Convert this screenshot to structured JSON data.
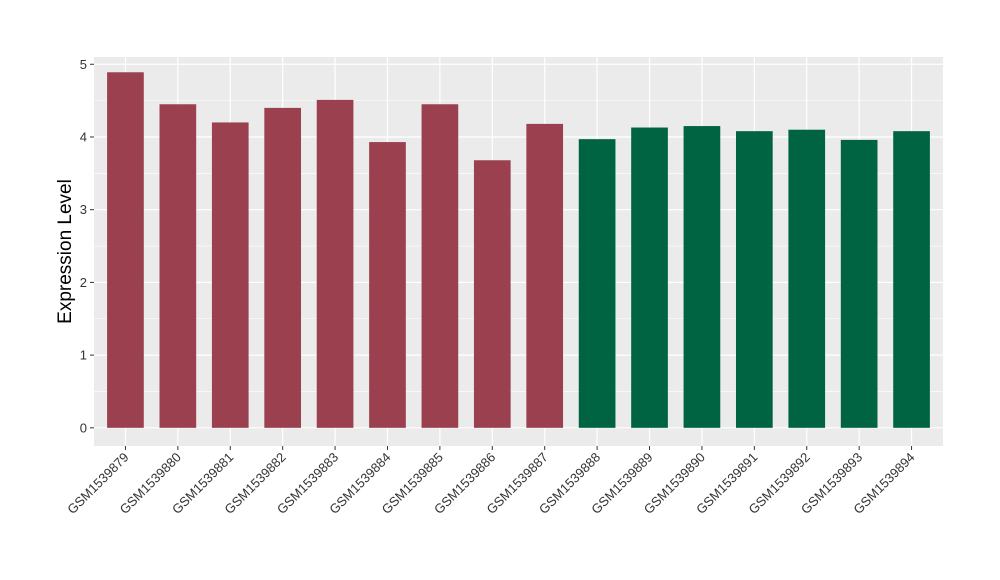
{
  "chart_data": {
    "type": "bar",
    "title": "",
    "xlabel": "",
    "ylabel": "Expression Level",
    "ylim": [
      -0.25,
      5.1
    ],
    "yticks": [
      0,
      1,
      2,
      3,
      4,
      5
    ],
    "grid": true,
    "categories": [
      "GSM1539879",
      "GSM1539880",
      "GSM1539881",
      "GSM1539882",
      "GSM1539883",
      "GSM1539884",
      "GSM1539885",
      "GSM1539886",
      "GSM1539887",
      "GSM1539888",
      "GSM1539889",
      "GSM1539890",
      "GSM1539891",
      "GSM1539892",
      "GSM1539893",
      "GSM1539894"
    ],
    "values": [
      4.89,
      4.45,
      4.2,
      4.4,
      4.51,
      3.93,
      4.45,
      3.68,
      4.18,
      3.97,
      4.13,
      4.15,
      4.08,
      4.1,
      3.96,
      4.08
    ],
    "groups": [
      0,
      0,
      0,
      0,
      0,
      0,
      0,
      0,
      0,
      1,
      1,
      1,
      1,
      1,
      1,
      1
    ],
    "colors": [
      "#9a404f",
      "#006443"
    ],
    "panel_background": "#ebebeb",
    "gridline_color": "#ffffff"
  }
}
